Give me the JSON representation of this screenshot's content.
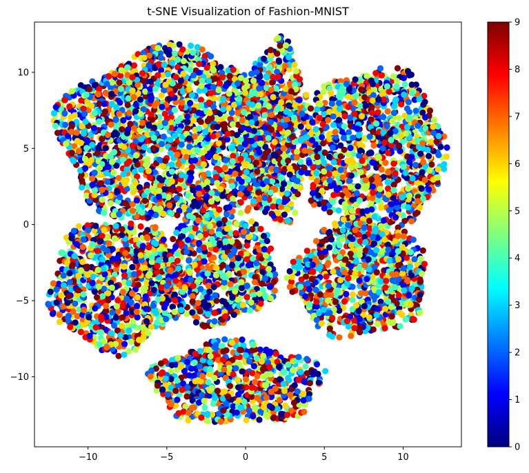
{
  "chart_data": {
    "type": "scatter",
    "title": "t-SNE Visualization of Fashion-MNIST",
    "xlabel": "",
    "ylabel": "",
    "xlim": [
      -13.4,
      13.7
    ],
    "ylim": [
      -14.6,
      13.3
    ],
    "xticks": [
      -10,
      -5,
      0,
      5,
      10
    ],
    "xtick_labels": [
      "−10",
      "−5",
      "0",
      "5",
      "10"
    ],
    "yticks": [
      -10,
      -5,
      0,
      5,
      10
    ],
    "ytick_labels": [
      "−10",
      "−5",
      "0",
      "5",
      "10"
    ],
    "grid": false,
    "colormap": "jet",
    "colorbar": {
      "min": 0,
      "max": 9,
      "ticks": [
        0,
        1,
        2,
        3,
        4,
        5,
        6,
        7,
        8,
        9
      ],
      "tick_labels": [
        "0",
        "1",
        "2",
        "3",
        "4",
        "5",
        "6",
        "7",
        "8",
        "9"
      ]
    },
    "jet_stops": [
      "#00007f",
      "#0000ff",
      "#007fff",
      "#00ffff",
      "#7fff7f",
      "#ffff00",
      "#ff7f00",
      "#ff0000",
      "#7f0000"
    ],
    "clusters": [
      {
        "center": [
          -4.5,
          5.8
        ],
        "radius_x": 7.4,
        "radius_y": 5.7
      },
      {
        "center": [
          1.9,
          6.1
        ],
        "radius_x": 2.2,
        "radius_y": 6.0
      },
      {
        "center": [
          8.2,
          4.8
        ],
        "radius_x": 4.5,
        "radius_y": 5.5
      },
      {
        "center": [
          -8.2,
          -4.0
        ],
        "radius_x": 4.2,
        "radius_y": 4.3
      },
      {
        "center": [
          -1.8,
          -2.9
        ],
        "radius_x": 3.8,
        "radius_y": 3.6
      },
      {
        "center": [
          7.2,
          -3.6
        ],
        "radius_x": 4.3,
        "radius_y": 3.8
      },
      {
        "center": [
          -0.6,
          -10.4
        ],
        "radius_x": 5.5,
        "radius_y": 2.7
      }
    ],
    "n_points": 7000
  }
}
